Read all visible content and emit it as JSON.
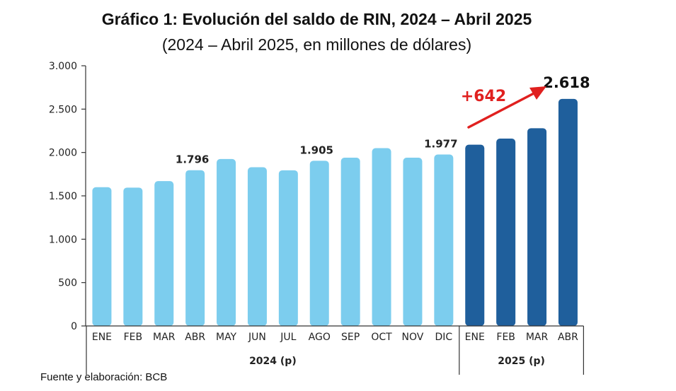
{
  "chart_data": {
    "type": "bar",
    "title": "Gráfico 1: Evolución del saldo de RIN, 2024 – Abril 2025",
    "subtitle": "(2024 – Abril 2025, en millones de dólares)",
    "categories": [
      "ENE",
      "FEB",
      "MAR",
      "ABR",
      "MAY",
      "JUN",
      "JUL",
      "AGO",
      "SEP",
      "OCT",
      "NOV",
      "DIC",
      "ENE",
      "FEB",
      "MAR",
      "ABR"
    ],
    "groups": [
      {
        "label": "2024 (p)",
        "count": 12,
        "color": "#7ccdee"
      },
      {
        "label": "2025 (p)",
        "count": 4,
        "color": "#1f5f9c"
      }
    ],
    "values": [
      1600,
      1595,
      1670,
      1796,
      1925,
      1830,
      1795,
      1905,
      1940,
      2050,
      1940,
      1977,
      2090,
      2160,
      2280,
      2618
    ],
    "data_labels": {
      "3": "1.796",
      "7": "1.905",
      "11": "1.977",
      "15": "2.618"
    },
    "annotation": {
      "text": "+642",
      "color": "#e0201f"
    },
    "ylim": [
      0,
      3000
    ],
    "yticks": [
      {
        "value": 0,
        "label": "0"
      },
      {
        "value": 500,
        "label": "500"
      },
      {
        "value": 1000,
        "label": "1.000"
      },
      {
        "value": 1500,
        "label": "1.500"
      },
      {
        "value": 2000,
        "label": "2.000"
      },
      {
        "value": 2500,
        "label": "2.500"
      },
      {
        "value": 3000,
        "label": "3.000"
      }
    ],
    "grid": false,
    "legend": "none"
  },
  "source": "Fuente y elaboración: BCB"
}
